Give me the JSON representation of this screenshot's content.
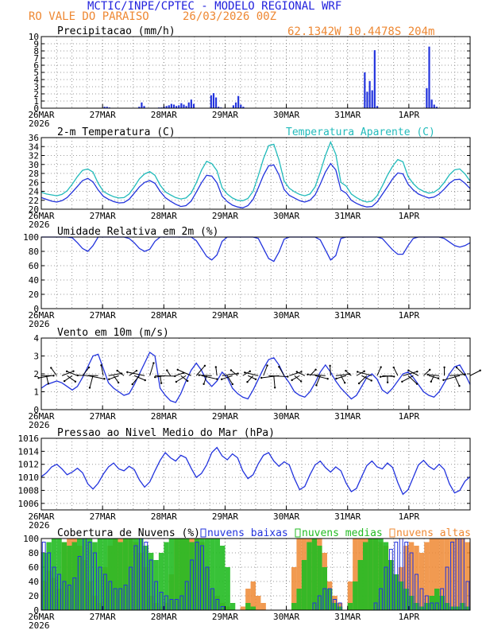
{
  "header": {
    "title": "MCTIC/INPE/CPTEC - MODELO REGIONAL WRF",
    "location": "RO VALE DO PARAISO",
    "run": "26/03/2026 00Z",
    "coords": "62.1342W 10.4478S 204m"
  },
  "colors": {
    "title": "#2222dd",
    "orange": "#ee8833",
    "blue": "#2233dd",
    "cyan": "#22bbbb",
    "green": "#22bb22",
    "black": "#000000"
  },
  "x_axis": {
    "labels": [
      "26MAR",
      "27MAR",
      "28MAR",
      "29MAR",
      "30MAR",
      "31MAR",
      "1APR"
    ],
    "year": "2026",
    "hours": 168
  },
  "chart_data": [
    {
      "type": "bar",
      "id": "precip",
      "title": "Precipitacao (mm/h)",
      "ylim": [
        0,
        10
      ],
      "yticks": [
        "0",
        "1",
        "2",
        "3",
        "4",
        "5",
        "6",
        "7",
        "8",
        "9",
        "10"
      ],
      "series": [
        {
          "name": "Precipitacao",
          "values": [
            0,
            0,
            0,
            0,
            0,
            0,
            0,
            0,
            0,
            0,
            0,
            0,
            0,
            0,
            0,
            0,
            0,
            0,
            0,
            0,
            0,
            0,
            0,
            0,
            0,
            0.2,
            0.2,
            0.1,
            0,
            0,
            0,
            0,
            0,
            0,
            0,
            0,
            0,
            0,
            0,
            0.2,
            0.8,
            0.3,
            0,
            0,
            0,
            0,
            0,
            0.1,
            0.1,
            0.2,
            0.3,
            0.4,
            0.6,
            0.5,
            0.3,
            0.4,
            0.7,
            0.5,
            0.3,
            0.8,
            1.2,
            0.6,
            0,
            0,
            0,
            0,
            0,
            0,
            1.8,
            2.1,
            1.5,
            0.2,
            0.1,
            0,
            0,
            0,
            0,
            0.4,
            0.8,
            1.7,
            0.5,
            0.2,
            0,
            0,
            0,
            0,
            0,
            0,
            0,
            0,
            0,
            0,
            0,
            0,
            0,
            0,
            0,
            0,
            0,
            0,
            0,
            0,
            0,
            0,
            0,
            0,
            0,
            0,
            0,
            0,
            0,
            0,
            0,
            0,
            0,
            0,
            0,
            0,
            0,
            0,
            0,
            0,
            0,
            0,
            0,
            0,
            0,
            0,
            0,
            0,
            5.0,
            2.3,
            3.8,
            2.5,
            8.1,
            0.3,
            0,
            0,
            0,
            0,
            0,
            0,
            0,
            0,
            0,
            0,
            0,
            0,
            0,
            0,
            0,
            0,
            0,
            0,
            0,
            2.8,
            8.6,
            1.2,
            0.5,
            0.2,
            0,
            0,
            0,
            0,
            0,
            0,
            0,
            0,
            0,
            0,
            0,
            0,
            0
          ]
        }
      ]
    },
    {
      "type": "line",
      "id": "temp",
      "title": "2-m Temperatura (C)",
      "title2": "Temperatura Aparente (C)",
      "ylim": [
        20,
        36
      ],
      "yticks": [
        "20",
        "22",
        "24",
        "26",
        "28",
        "30",
        "32",
        "34",
        "36"
      ],
      "series": [
        {
          "name": "Temperatura Aparente (C)",
          "color": "cyan",
          "values": [
            23.8,
            23.4,
            23.2,
            23.0,
            23.3,
            24.1,
            25.6,
            27.3,
            28.7,
            29.0,
            28.3,
            25.8,
            24.0,
            23.3,
            22.8,
            22.5,
            22.6,
            23.4,
            25.0,
            26.8,
            27.9,
            28.4,
            27.6,
            25.4,
            23.9,
            23.2,
            22.6,
            22.3,
            22.5,
            23.6,
            25.9,
            28.7,
            30.7,
            30.2,
            28.6,
            24.8,
            23.4,
            22.5,
            22.0,
            21.9,
            22.4,
            24.0,
            27.5,
            31.3,
            34.2,
            34.5,
            31.0,
            26.3,
            24.7,
            23.9,
            23.3,
            23.0,
            23.4,
            25.0,
            28.3,
            32.0,
            35.0,
            32.3,
            26.0,
            25.2,
            23.4,
            22.6,
            22.0,
            21.6,
            21.8,
            23.0,
            25.2,
            27.6,
            29.6,
            31.1,
            30.6,
            27.3,
            25.7,
            24.6,
            24.0,
            23.6,
            23.8,
            24.6,
            26.0,
            27.7,
            28.8,
            29.0,
            27.9,
            26.3
          ]
        },
        {
          "name": "2-m Temperatura (C)",
          "color": "blue",
          "values": [
            22.6,
            22.2,
            21.8,
            21.6,
            21.9,
            22.6,
            23.8,
            25.1,
            26.4,
            26.9,
            26.1,
            24.3,
            22.9,
            22.2,
            21.7,
            21.4,
            21.5,
            22.2,
            23.6,
            25.0,
            26.0,
            26.4,
            25.8,
            24.0,
            22.6,
            21.8,
            21.1,
            20.6,
            20.8,
            21.8,
            23.8,
            25.9,
            27.6,
            27.4,
            25.9,
            22.9,
            21.7,
            20.9,
            20.5,
            20.3,
            20.8,
            22.2,
            24.8,
            27.6,
            29.7,
            29.9,
            27.7,
            24.4,
            23.1,
            22.5,
            21.9,
            21.6,
            22.0,
            23.2,
            25.6,
            28.3,
            30.2,
            28.8,
            24.3,
            23.6,
            22.0,
            21.3,
            20.8,
            20.5,
            20.6,
            21.6,
            23.3,
            25.0,
            26.8,
            28.1,
            27.9,
            25.6,
            24.3,
            23.4,
            22.9,
            22.5,
            22.7,
            23.4,
            24.5,
            25.8,
            26.6,
            26.7,
            25.8,
            24.6
          ]
        }
      ]
    },
    {
      "type": "line",
      "id": "rh",
      "title": "Umidade Relativa em 2m (%)",
      "ylim": [
        0,
        100
      ],
      "yticks": [
        "0",
        "20",
        "40",
        "60",
        "80",
        "100"
      ],
      "series": [
        {
          "name": "Umidade Relativa",
          "values": [
            100,
            100,
            100,
            100,
            100,
            100,
            99,
            92,
            84,
            80,
            88,
            100,
            100,
            100,
            100,
            100,
            100,
            98,
            92,
            84,
            80,
            83,
            94,
            100,
            100,
            100,
            100,
            100,
            100,
            100,
            95,
            84,
            73,
            68,
            75,
            94,
            100,
            100,
            100,
            100,
            100,
            100,
            98,
            84,
            70,
            66,
            79,
            97,
            100,
            100,
            100,
            100,
            100,
            100,
            96,
            82,
            68,
            74,
            98,
            100,
            100,
            100,
            100,
            100,
            100,
            100,
            98,
            90,
            82,
            76,
            76,
            88,
            98,
            100,
            100,
            100,
            100,
            100,
            98,
            93,
            88,
            86,
            88,
            92
          ]
        }
      ]
    },
    {
      "type": "line",
      "id": "wind",
      "title": "Vento em 10m (m/s)",
      "ylim": [
        0,
        4
      ],
      "yticks": [
        "0",
        "1",
        "2",
        "3",
        "4"
      ],
      "series": [
        {
          "name": "Vento",
          "values": [
            1.2,
            1.4,
            1.5,
            1.6,
            1.5,
            1.3,
            1.1,
            1.3,
            1.8,
            2.4,
            3.0,
            3.1,
            2.3,
            1.5,
            1.2,
            1.0,
            0.8,
            0.9,
            1.4,
            2.0,
            2.6,
            3.2,
            3.0,
            1.2,
            0.8,
            0.5,
            0.4,
            0.9,
            1.6,
            2.2,
            2.6,
            2.2,
            1.6,
            1.3,
            1.6,
            2.1,
            1.8,
            1.2,
            0.9,
            0.7,
            0.6,
            1.1,
            1.7,
            2.3,
            2.8,
            2.9,
            2.5,
            1.9,
            1.5,
            1.0,
            0.8,
            0.7,
            1.0,
            1.5,
            2.1,
            2.5,
            2.1,
            1.6,
            1.2,
            0.9,
            0.6,
            0.8,
            1.3,
            1.8,
            2.0,
            1.7,
            1.1,
            0.9,
            1.2,
            1.6,
            2.0,
            2.1,
            1.8,
            1.4,
            1.0,
            0.8,
            0.7,
            1.0,
            1.5,
            2.0,
            2.4,
            2.5,
            2.0,
            1.4
          ]
        }
      ]
    },
    {
      "type": "line",
      "id": "pres",
      "title": "Pressao ao Nivel Medio do Mar (hPa)",
      "ylim": [
        1005,
        1016
      ],
      "yticks": [
        "1006",
        "1008",
        "1010",
        "1012",
        "1014",
        "1016"
      ],
      "series": [
        {
          "name": "Pressao",
          "values": [
            1010.1,
            1010.7,
            1011.6,
            1012.0,
            1011.3,
            1010.4,
            1010.8,
            1011.4,
            1010.7,
            1009.0,
            1008.2,
            1009.1,
            1010.5,
            1011.6,
            1012.2,
            1011.3,
            1011.0,
            1011.7,
            1011.2,
            1009.6,
            1008.5,
            1009.3,
            1011.0,
            1012.6,
            1013.8,
            1013.0,
            1012.5,
            1013.4,
            1013.0,
            1011.4,
            1010.0,
            1010.6,
            1011.9,
            1013.8,
            1014.6,
            1013.3,
            1012.7,
            1013.6,
            1013.0,
            1011.0,
            1009.8,
            1010.4,
            1012.1,
            1013.4,
            1013.8,
            1012.5,
            1011.7,
            1012.4,
            1011.9,
            1009.8,
            1008.1,
            1008.6,
            1010.4,
            1011.9,
            1012.5,
            1011.5,
            1010.8,
            1011.6,
            1011.0,
            1009.1,
            1007.8,
            1008.3,
            1010.1,
            1011.8,
            1012.5,
            1011.6,
            1011.3,
            1012.2,
            1011.5,
            1009.2,
            1007.4,
            1008.1,
            1010.0,
            1011.9,
            1012.6,
            1011.7,
            1011.2,
            1012.0,
            1011.2,
            1009.0,
            1007.6,
            1008.0,
            1009.4,
            1010.1
          ]
        }
      ]
    },
    {
      "type": "bar",
      "id": "cloud",
      "title": "Cobertura de Nuvens (%)",
      "legend": [
        "nuvens baixas",
        "nuvens medias",
        "nuvens altas"
      ],
      "ylim": [
        0,
        100
      ],
      "yticks": [
        "0",
        "20",
        "40",
        "60",
        "80",
        "100"
      ],
      "series": [
        {
          "name": "nuvens altas",
          "color": "orange",
          "values": [
            40,
            55,
            45,
            30,
            95,
            100,
            100,
            90,
            70,
            40,
            20,
            10,
            60,
            90,
            100,
            100,
            100,
            100,
            95,
            80,
            60,
            20,
            10,
            5,
            10,
            50,
            100,
            100,
            100,
            100,
            100,
            95,
            60,
            30,
            20,
            10,
            5,
            0,
            0,
            5,
            30,
            40,
            20,
            10,
            0,
            0,
            0,
            0,
            0,
            60,
            100,
            100,
            100,
            100,
            100,
            80,
            40,
            20,
            10,
            0,
            40,
            100,
            100,
            100,
            100,
            100,
            95,
            90,
            70,
            50,
            60,
            90,
            95,
            90,
            80,
            95,
            100,
            100,
            100,
            100,
            100,
            100,
            100,
            95
          ]
        },
        {
          "name": "nuvens medias",
          "color": "green",
          "values": [
            80,
            95,
            100,
            100,
            95,
            90,
            95,
            100,
            100,
            100,
            95,
            100,
            100,
            100,
            100,
            95,
            100,
            100,
            100,
            100,
            90,
            80,
            70,
            80,
            95,
            100,
            100,
            100,
            100,
            95,
            100,
            100,
            100,
            100,
            100,
            90,
            60,
            10,
            0,
            0,
            10,
            5,
            0,
            0,
            0,
            0,
            0,
            0,
            0,
            10,
            30,
            70,
            95,
            100,
            90,
            60,
            30,
            10,
            5,
            0,
            10,
            40,
            70,
            95,
            100,
            100,
            100,
            95,
            70,
            50,
            40,
            30,
            20,
            10,
            5,
            10,
            20,
            30,
            20,
            10,
            5,
            5,
            10,
            5
          ]
        },
        {
          "name": "nuvens baixas",
          "color": "blue",
          "values": [
            95,
            80,
            60,
            50,
            40,
            35,
            45,
            75,
            100,
            95,
            80,
            60,
            50,
            40,
            30,
            30,
            35,
            60,
            90,
            100,
            95,
            70,
            40,
            25,
            20,
            15,
            15,
            20,
            40,
            70,
            95,
            90,
            60,
            30,
            15,
            5,
            0,
            0,
            0,
            0,
            0,
            0,
            0,
            0,
            0,
            0,
            0,
            0,
            0,
            0,
            0,
            0,
            0,
            10,
            20,
            30,
            30,
            15,
            10,
            0,
            0,
            0,
            0,
            0,
            0,
            10,
            30,
            60,
            85,
            95,
            100,
            95,
            80,
            50,
            30,
            20,
            10,
            10,
            30,
            60,
            95,
            100,
            100,
            40
          ]
        }
      ]
    }
  ]
}
